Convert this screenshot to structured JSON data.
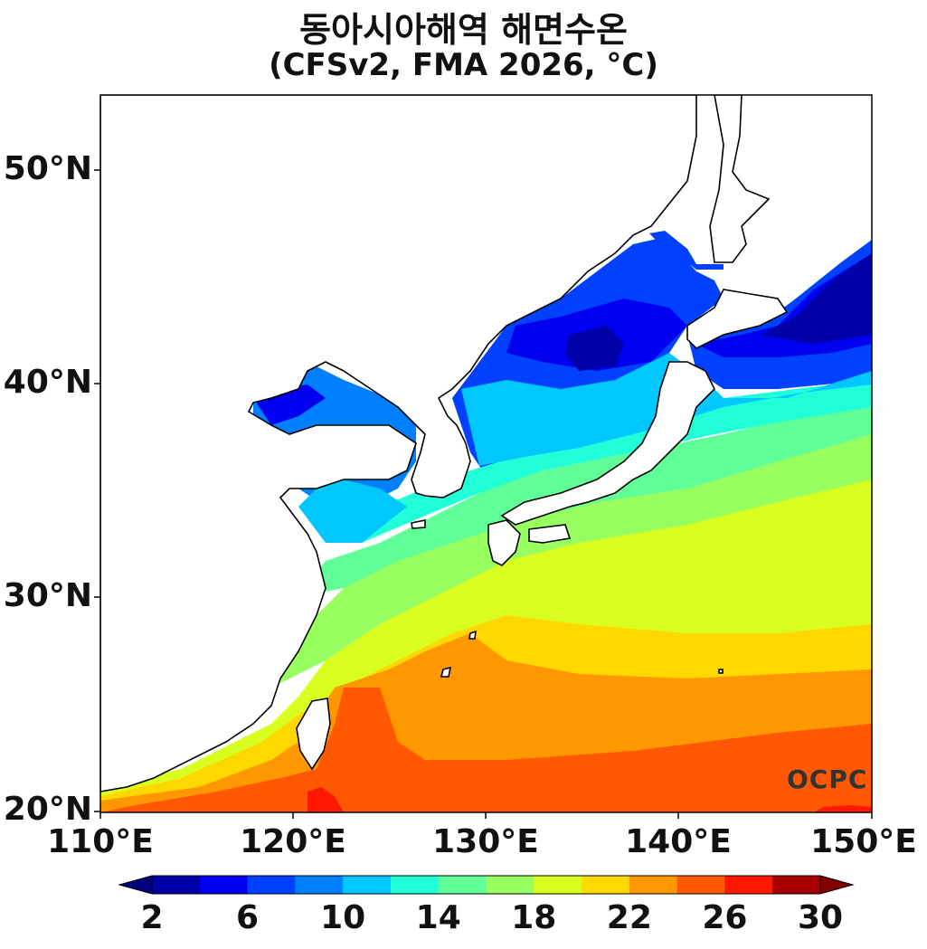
{
  "title": {
    "line1": "동아시아해역 해면수온",
    "line2": "(CFSv2, FMA 2026, °C)"
  },
  "map": {
    "lat_ticks": [
      "50°N",
      "40°N",
      "30°N",
      "20°N"
    ],
    "lon_ticks": [
      "110°E",
      "120°E",
      "130°E",
      "140°E",
      "150°E"
    ],
    "extent": {
      "lon_min": 110,
      "lon_max": 150,
      "lat_min": 20,
      "lat_max": 53.5
    }
  },
  "colorbar": {
    "labels": [
      "2",
      "6",
      "10",
      "14",
      "18",
      "22",
      "26",
      "30"
    ],
    "levels": [
      2,
      4,
      6,
      8,
      10,
      12,
      14,
      16,
      18,
      20,
      22,
      24,
      26,
      28,
      30
    ],
    "colors": [
      "#0000a8",
      "#0000f0",
      "#0040ff",
      "#0080ff",
      "#00c8ff",
      "#20ffd8",
      "#60ff98",
      "#98ff60",
      "#d8ff20",
      "#ffd800",
      "#ff9800",
      "#ff5800",
      "#ff1800",
      "#a80000"
    ],
    "under_color": "#00007f",
    "over_color": "#800000"
  },
  "logo": "OCPC"
}
